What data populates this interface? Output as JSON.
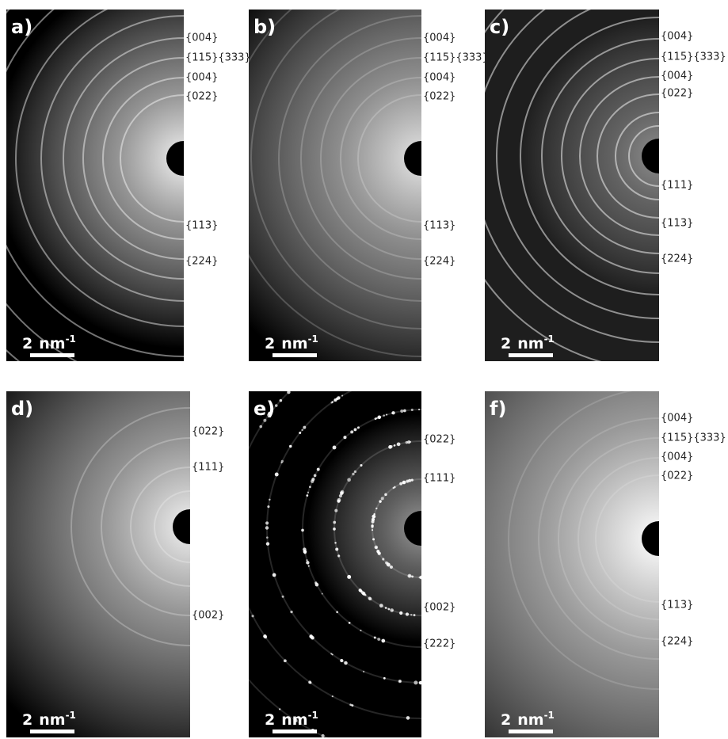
{
  "panels": [
    {
      "label": "a)",
      "rings": [
        "{004}",
        "{115}{333}",
        "{004}",
        "{022}",
        "{113}",
        "{224}"
      ],
      "scale_bar": {
        "number": "2",
        "unit": "nm",
        "exponent": "-1"
      }
    },
    {
      "label": "b)",
      "rings": [
        "{004}",
        "{115}{333}",
        "{004}",
        "{022}",
        "{113}",
        "{224}"
      ],
      "scale_bar": {
        "number": "2",
        "unit": "nm",
        "exponent": "-1"
      }
    },
    {
      "label": "c)",
      "rings": [
        "{004}",
        "{115}{333}",
        "{004}",
        "{022}",
        "{111}",
        "{113}",
        "{224}"
      ],
      "scale_bar": {
        "number": "2",
        "unit": "nm",
        "exponent": "-1"
      }
    },
    {
      "label": "d)",
      "rings": [
        "{022}",
        "{111}",
        "{002}"
      ],
      "scale_bar": {
        "number": "2",
        "unit": "nm",
        "exponent": "-1"
      }
    },
    {
      "label": "e)",
      "rings": [
        "{022}",
        "{111}",
        "{002}",
        "{222}"
      ],
      "scale_bar": {
        "number": "2",
        "unit": "nm",
        "exponent": "-1"
      }
    },
    {
      "label": "f)",
      "rings": [
        "{004}",
        "{115}{333}",
        "{004}",
        "{022}",
        "{113}",
        "{224}"
      ],
      "scale_bar": {
        "number": "2",
        "unit": "nm",
        "exponent": "-1"
      }
    }
  ]
}
